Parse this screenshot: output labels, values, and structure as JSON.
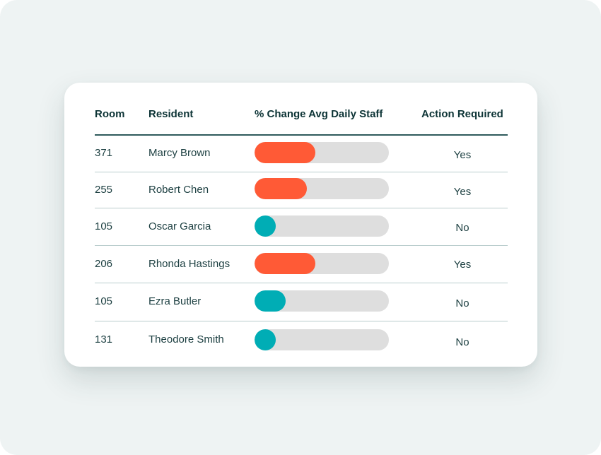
{
  "columns": {
    "room": "Room",
    "resident": "Resident",
    "change": "% Change Avg Daily Staff",
    "action": "Action Required"
  },
  "colors": {
    "high": "#ff5a36",
    "low": "#00adb5",
    "track": "#dedede"
  },
  "rows": [
    {
      "room": "371",
      "resident": "Marcy Brown",
      "change_fraction": 0.45,
      "level": "high",
      "action": "Yes"
    },
    {
      "room": "255",
      "resident": "Robert Chen",
      "change_fraction": 0.39,
      "level": "high",
      "action": "Yes"
    },
    {
      "room": "105",
      "resident": "Oscar Garcia",
      "change_fraction": 0.16,
      "level": "low",
      "action": "No"
    },
    {
      "room": "206",
      "resident": "Rhonda Hastings",
      "change_fraction": 0.45,
      "level": "high",
      "action": "Yes"
    },
    {
      "room": "105",
      "resident": "Ezra Butler",
      "change_fraction": 0.23,
      "level": "low",
      "action": "No"
    },
    {
      "room": "131",
      "resident": "Theodore Smith",
      "change_fraction": 0.16,
      "level": "low",
      "action": "No"
    }
  ]
}
